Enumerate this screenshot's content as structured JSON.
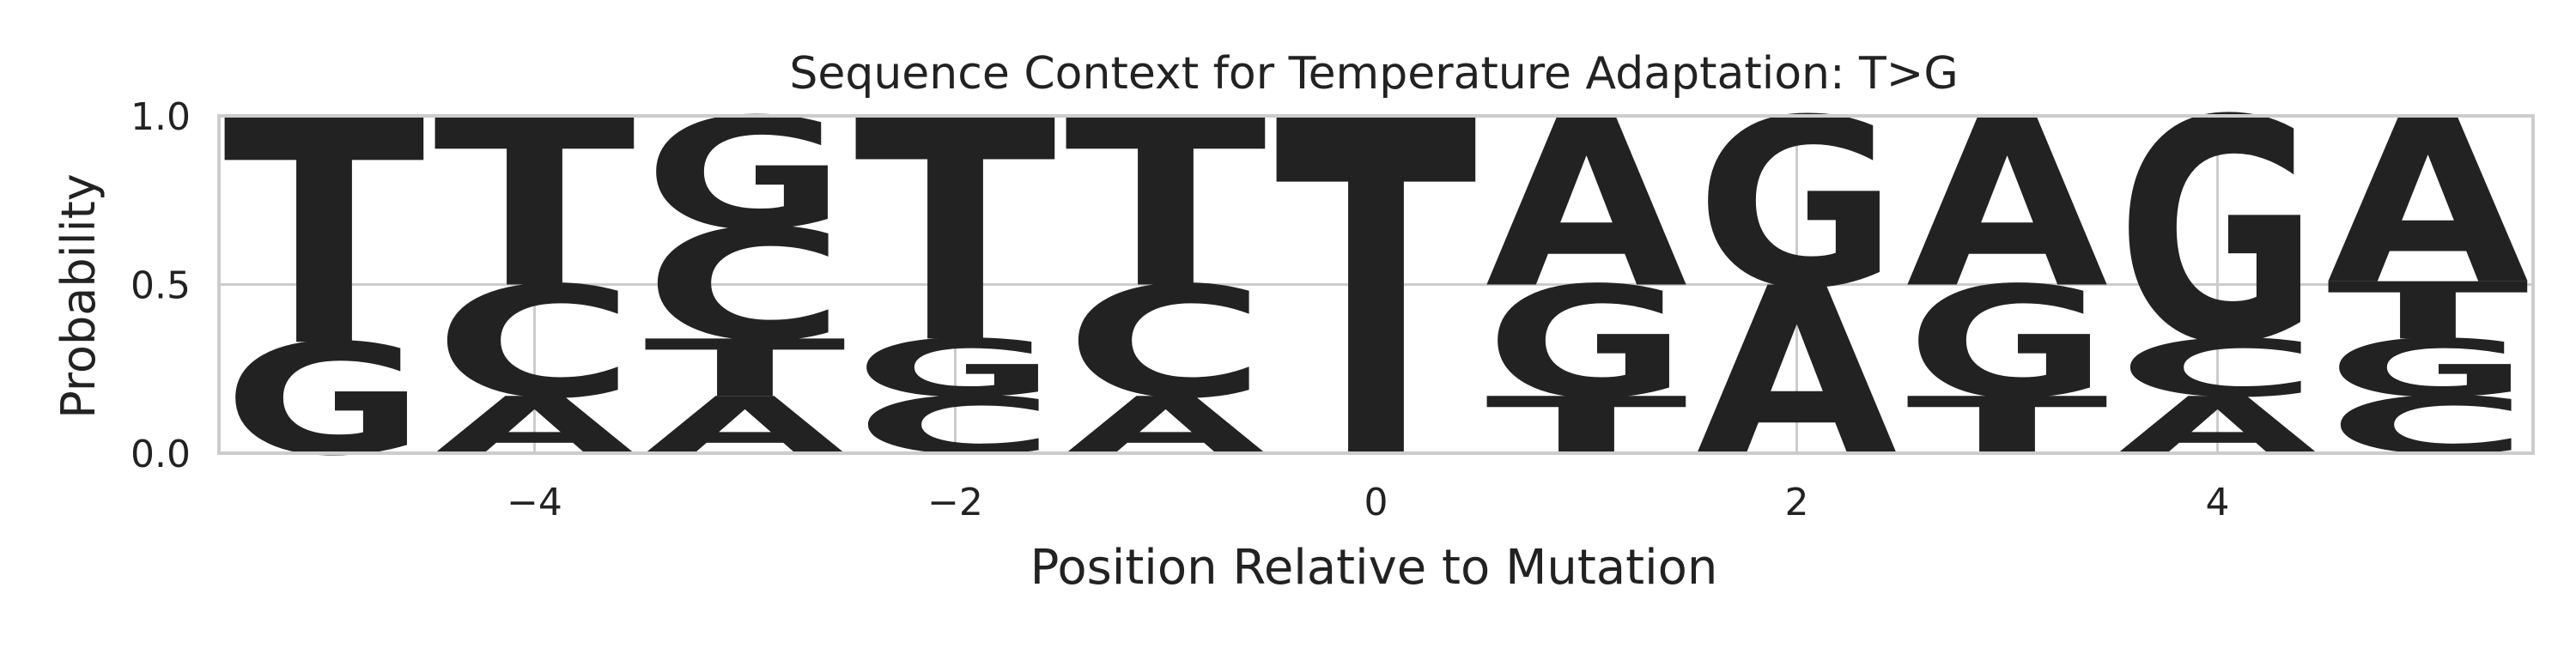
{
  "chart_data": {
    "type": "sequence-logo",
    "title": "Sequence Context for Temperature Adaptation: T>G",
    "xlabel": "Position Relative to Mutation",
    "ylabel": "Probability",
    "xlim": [
      -5.5,
      5.5
    ],
    "ylim": [
      0,
      1
    ],
    "xticks": [
      -4,
      -2,
      0,
      2,
      4
    ],
    "xtick_labels": [
      "−4",
      "−2",
      "0",
      "2",
      "4"
    ],
    "yticks": [
      0,
      0.5,
      1
    ],
    "ytick_labels": [
      "0.0",
      "0.5",
      "1.0"
    ],
    "grid": true,
    "colors": {
      "A": "#008000",
      "C": "#0000ff",
      "G": "#ffa500",
      "T": "#ff0000"
    },
    "positions": [
      {
        "pos": -5,
        "stack": [
          {
            "base": "G",
            "p": 0.33
          },
          {
            "base": "T",
            "p": 0.67
          }
        ]
      },
      {
        "pos": -4,
        "stack": [
          {
            "base": "A",
            "p": 0.17
          },
          {
            "base": "C",
            "p": 0.33
          },
          {
            "base": "T",
            "p": 0.5
          }
        ]
      },
      {
        "pos": -3,
        "stack": [
          {
            "base": "A",
            "p": 0.17
          },
          {
            "base": "T",
            "p": 0.17
          },
          {
            "base": "C",
            "p": 0.33
          },
          {
            "base": "G",
            "p": 0.33
          }
        ]
      },
      {
        "pos": -2,
        "stack": [
          {
            "base": "C",
            "p": 0.17
          },
          {
            "base": "G",
            "p": 0.17
          },
          {
            "base": "T",
            "p": 0.66
          }
        ]
      },
      {
        "pos": -1,
        "stack": [
          {
            "base": "A",
            "p": 0.17
          },
          {
            "base": "C",
            "p": 0.33
          },
          {
            "base": "T",
            "p": 0.5
          }
        ]
      },
      {
        "pos": 0,
        "stack": [
          {
            "base": "T",
            "p": 1.0
          }
        ]
      },
      {
        "pos": 1,
        "stack": [
          {
            "base": "T",
            "p": 0.17
          },
          {
            "base": "G",
            "p": 0.33
          },
          {
            "base": "A",
            "p": 0.5
          }
        ]
      },
      {
        "pos": 2,
        "stack": [
          {
            "base": "A",
            "p": 0.5
          },
          {
            "base": "G",
            "p": 0.5
          }
        ]
      },
      {
        "pos": 3,
        "stack": [
          {
            "base": "T",
            "p": 0.17
          },
          {
            "base": "G",
            "p": 0.33
          },
          {
            "base": "A",
            "p": 0.5
          }
        ]
      },
      {
        "pos": 4,
        "stack": [
          {
            "base": "A",
            "p": 0.17
          },
          {
            "base": "C",
            "p": 0.17
          },
          {
            "base": "G",
            "p": 0.66
          }
        ]
      },
      {
        "pos": 5,
        "stack": [
          {
            "base": "C",
            "p": 0.17
          },
          {
            "base": "G",
            "p": 0.17
          },
          {
            "base": "T",
            "p": 0.17
          },
          {
            "base": "A",
            "p": 0.49
          }
        ]
      }
    ]
  }
}
